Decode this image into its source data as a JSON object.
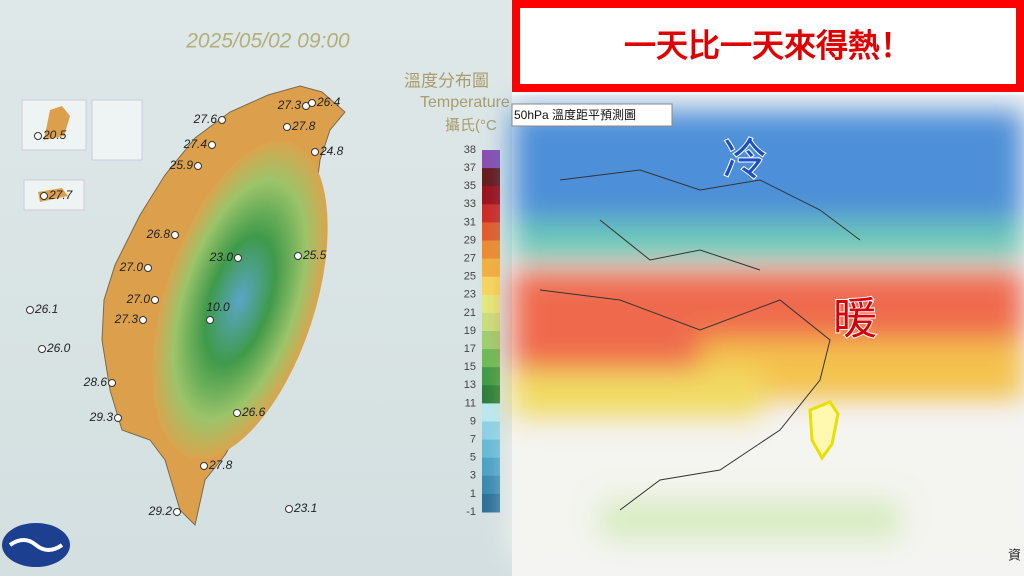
{
  "left_panel": {
    "timestamp": "2025/05/02 09:00",
    "legend": {
      "title": "溫度分布圖",
      "subtitle": "Temperature",
      "unit": "攝氏(°C",
      "ticks": [
        38,
        37,
        35,
        33,
        31,
        29,
        27,
        25,
        23,
        21,
        19,
        17,
        15,
        13,
        11,
        9,
        7,
        5,
        3,
        1,
        -1
      ]
    },
    "stations": [
      "20.5",
      "27.7",
      "27.6",
      "27.3",
      "26.4",
      "27.8",
      "27.4",
      "24.8",
      "25.9",
      "26.8",
      "23.0",
      "25.5",
      "27.0",
      "26.1",
      "27.0",
      "10.0",
      "27.3",
      "26.0",
      "28.6",
      "29.3",
      "26.6",
      "27.8",
      "29.2",
      "23.1"
    ]
  },
  "right_panel": {
    "banner": "一天比一天來得熱！",
    "map_title": "50hPa 溫度距平預測圖",
    "cold_label": "冷",
    "warm_label": "暖",
    "source": "資"
  }
}
